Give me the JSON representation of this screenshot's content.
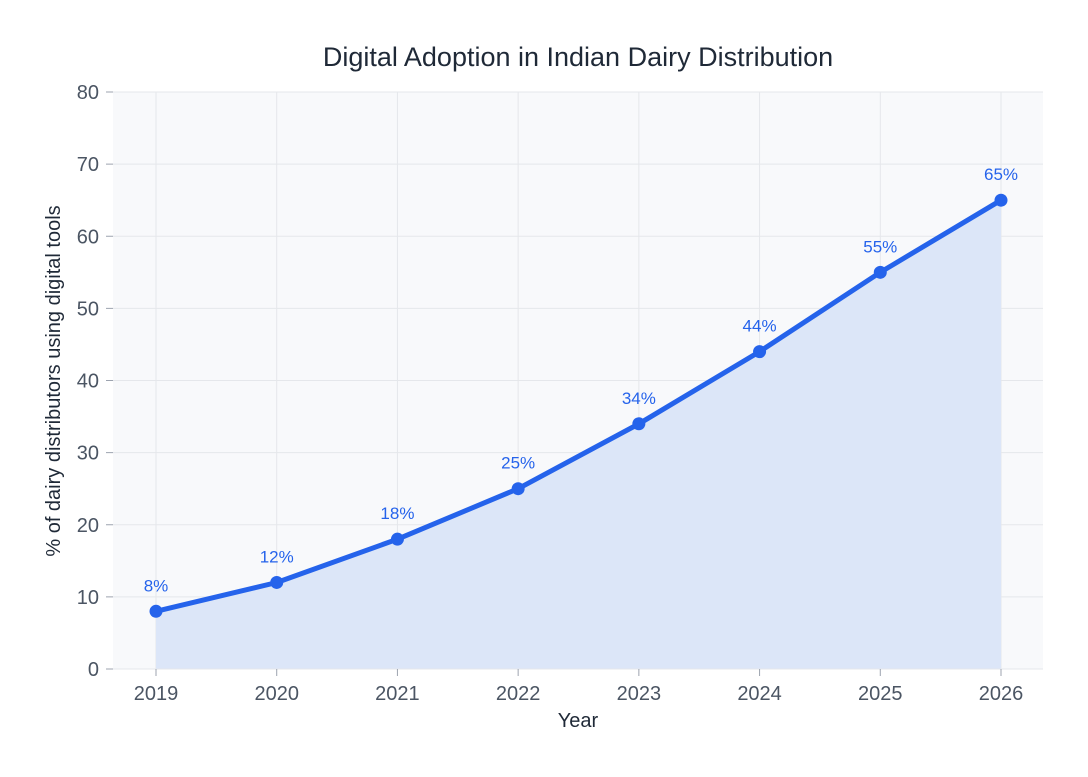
{
  "chart_data": {
    "type": "area",
    "title": "Digital Adoption in Indian Dairy Distribution",
    "xlabel": "Year",
    "ylabel": "% of dairy distributors using digital tools",
    "categories": [
      "2019",
      "2020",
      "2021",
      "2022",
      "2023",
      "2024",
      "2025",
      "2026"
    ],
    "values": [
      8,
      12,
      18,
      25,
      34,
      44,
      55,
      65
    ],
    "data_labels": [
      "8%",
      "12%",
      "18%",
      "25%",
      "34%",
      "44%",
      "55%",
      "65%"
    ],
    "ylim": [
      0,
      80
    ],
    "yticks": [
      0,
      10,
      20,
      30,
      40,
      50,
      60,
      70,
      80
    ],
    "ytick_labels": [
      "0",
      "10",
      "20",
      "30",
      "40",
      "50",
      "60",
      "70",
      "80"
    ],
    "grid": true,
    "colors": {
      "line": "#2563eb",
      "fill": "#dce6f8",
      "plot_bg": "#f8f9fb",
      "grid": "#e5e7eb"
    }
  }
}
